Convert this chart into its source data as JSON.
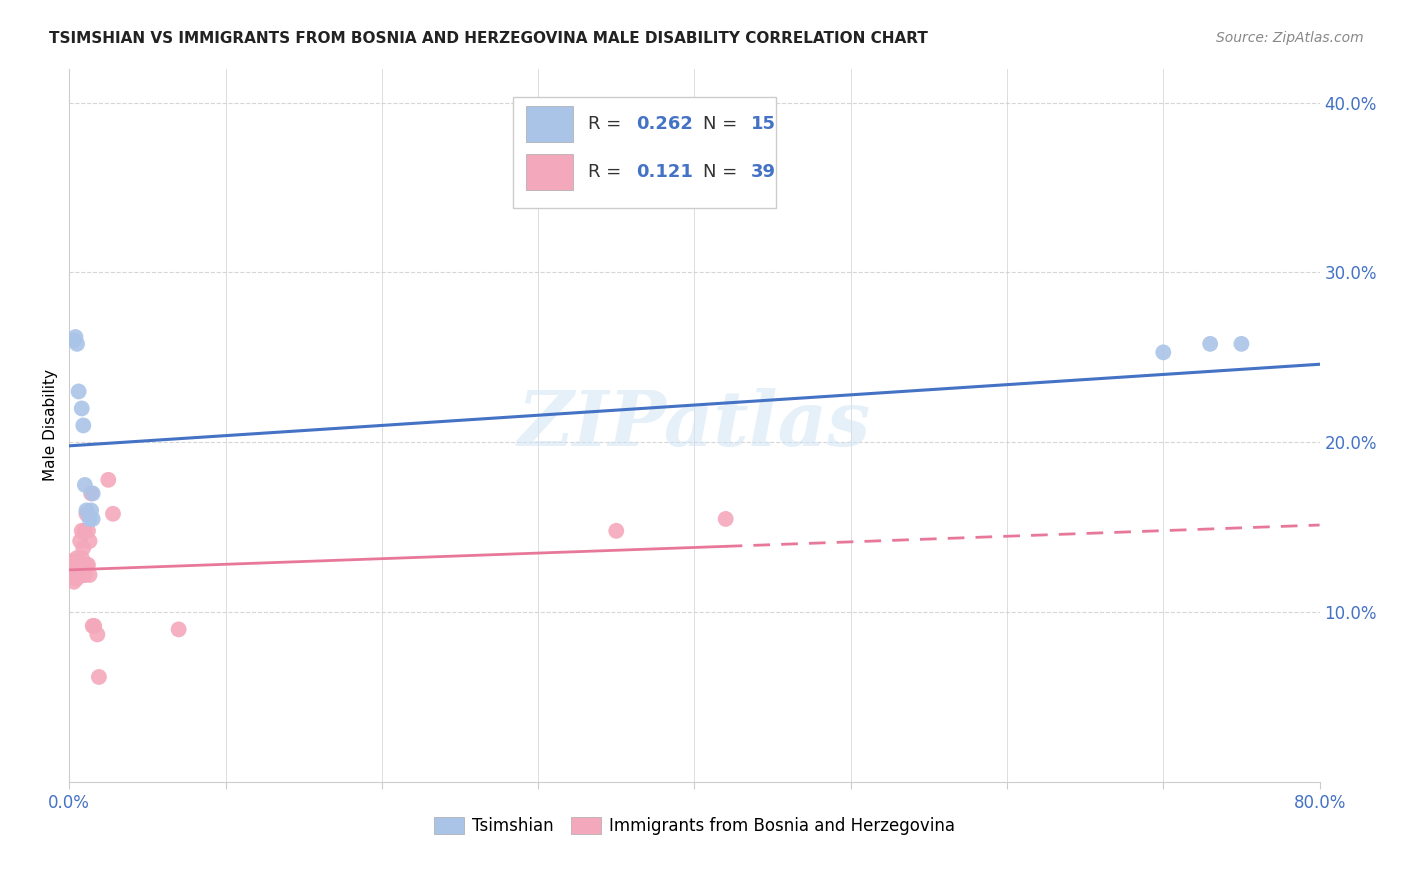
{
  "title": "TSIMSHIAN VS IMMIGRANTS FROM BOSNIA AND HERZEGOVINA MALE DISABILITY CORRELATION CHART",
  "source": "Source: ZipAtlas.com",
  "ylabel": "Male Disability",
  "xlim": [
    0,
    0.8
  ],
  "ylim": [
    0,
    0.42
  ],
  "xtick_vals": [
    0.0,
    0.1,
    0.2,
    0.3,
    0.4,
    0.5,
    0.6,
    0.7,
    0.8
  ],
  "xtick_labels_sparse": [
    "0.0%",
    "",
    "",
    "",
    "",
    "",
    "",
    "",
    "80.0%"
  ],
  "ytick_labels": [
    "10.0%",
    "20.0%",
    "30.0%",
    "40.0%"
  ],
  "ytick_vals": [
    0.1,
    0.2,
    0.3,
    0.4
  ],
  "grid_color": "#cccccc",
  "watermark": "ZIPatlas",
  "series1_color": "#aac4e8",
  "series2_color": "#f4a8bc",
  "line1_color": "#4472c4",
  "line2_color": "#e8789a",
  "series1_label": "Tsimshian",
  "series2_label": "Immigrants from Bosnia and Herzegovina",
  "tsimshian_x": [
    0.003,
    0.004,
    0.005,
    0.006,
    0.008,
    0.009,
    0.01,
    0.011,
    0.013,
    0.014,
    0.015,
    0.015,
    0.7,
    0.73,
    0.75
  ],
  "tsimshian_y": [
    0.26,
    0.262,
    0.258,
    0.23,
    0.22,
    0.21,
    0.175,
    0.16,
    0.155,
    0.16,
    0.155,
    0.17,
    0.253,
    0.258,
    0.258
  ],
  "bosnia_x": [
    0.001,
    0.002,
    0.002,
    0.003,
    0.003,
    0.003,
    0.004,
    0.004,
    0.004,
    0.005,
    0.005,
    0.005,
    0.006,
    0.006,
    0.007,
    0.007,
    0.008,
    0.008,
    0.008,
    0.009,
    0.009,
    0.01,
    0.01,
    0.011,
    0.011,
    0.012,
    0.012,
    0.013,
    0.013,
    0.014,
    0.015,
    0.016,
    0.018,
    0.019,
    0.025,
    0.028,
    0.07,
    0.35,
    0.42
  ],
  "bosnia_y": [
    0.13,
    0.125,
    0.121,
    0.127,
    0.122,
    0.118,
    0.13,
    0.125,
    0.12,
    0.132,
    0.126,
    0.12,
    0.13,
    0.122,
    0.142,
    0.122,
    0.148,
    0.132,
    0.126,
    0.138,
    0.122,
    0.148,
    0.122,
    0.158,
    0.128,
    0.148,
    0.128,
    0.142,
    0.122,
    0.17,
    0.092,
    0.092,
    0.087,
    0.062,
    0.178,
    0.158,
    0.09,
    0.148,
    0.155
  ],
  "line1_intercept": 0.198,
  "line1_slope": 0.06,
  "line2_intercept": 0.125,
  "line2_slope": 0.033,
  "line2_solid_end": 0.42,
  "line2_dashed_start": 0.42
}
